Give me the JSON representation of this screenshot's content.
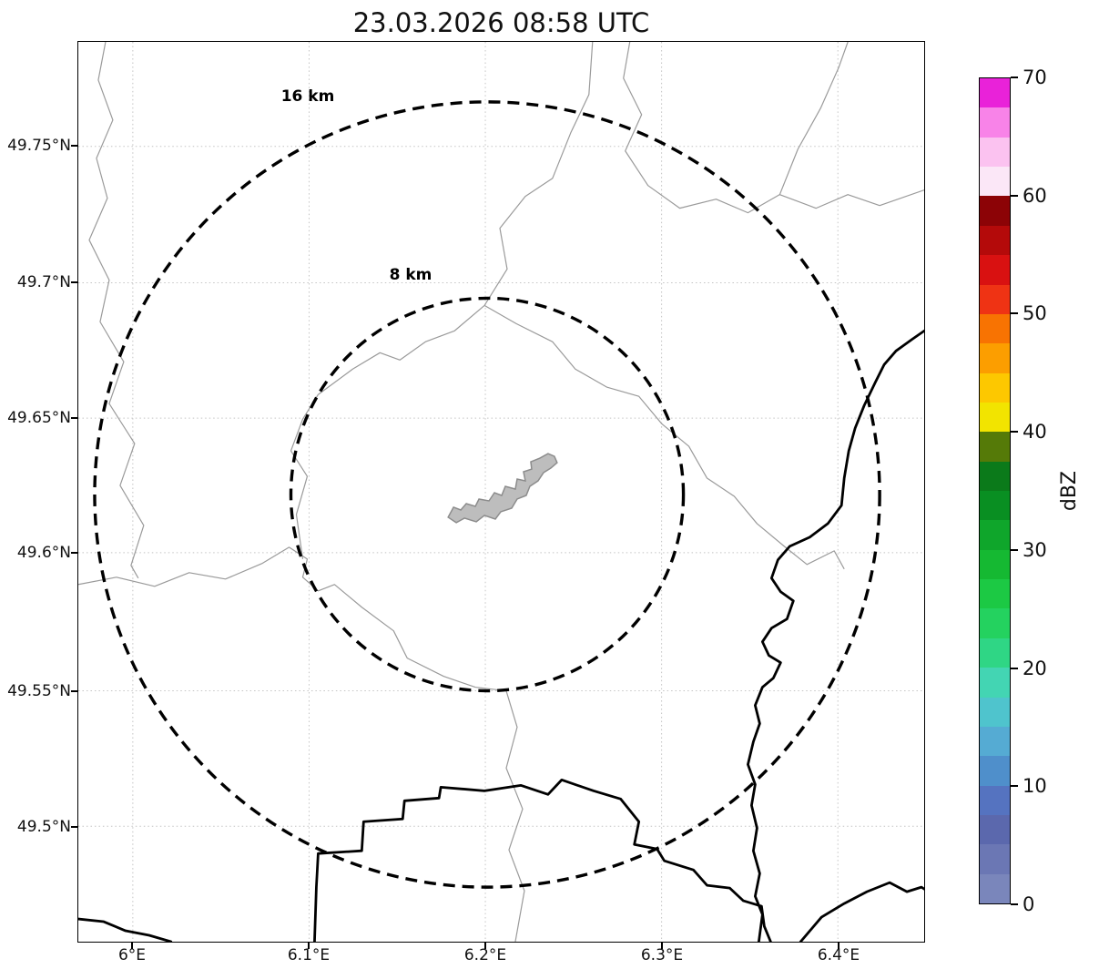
{
  "title": "23.03.2026 08:58 UTC",
  "map": {
    "x_tick_labels": [
      "6°E",
      "6.1°E",
      "6.2°E",
      "6.3°E",
      "6.4°E"
    ],
    "y_tick_labels": [
      "49.75°N",
      "49.7°N",
      "49.65°N",
      "49.6°N",
      "49.55°N",
      "49.5°N"
    ],
    "range_rings": [
      {
        "label": "8 km",
        "radius_km": 8
      },
      {
        "label": "16 km",
        "radius_km": 16
      }
    ]
  },
  "colorbar": {
    "label": "dBZ",
    "min": 0,
    "max": 70,
    "tick_labels": [
      "70",
      "60",
      "50",
      "40",
      "30",
      "20",
      "10",
      "0"
    ],
    "colors_bottom_to_top": [
      "#7a86bb",
      "#6b77b4",
      "#5b68ad",
      "#5573c0",
      "#4f8fcb",
      "#55abd3",
      "#4fc4cd",
      "#43d5b3",
      "#2fd685",
      "#24d25f",
      "#1cc944",
      "#15b932",
      "#0fa62b",
      "#098f22",
      "#0b7a1a",
      "#557a08",
      "#f2e400",
      "#fdc800",
      "#fc9e00",
      "#f87302",
      "#ef3314",
      "#d91111",
      "#b40a0a",
      "#8c0306",
      "#fbe7f7",
      "#fbc2f0",
      "#f883e8",
      "#e922d9"
    ]
  },
  "chart_data": {
    "type": "map",
    "title": "23.03.2026 08:58 UTC",
    "x_axis_range_deg_east": [
      5.97,
      6.45
    ],
    "y_axis_range_deg_north": [
      49.465,
      49.79
    ],
    "x_ticks_deg_east": [
      6.0,
      6.1,
      6.2,
      6.3,
      6.4
    ],
    "y_ticks_deg_north": [
      49.75,
      49.7,
      49.65,
      49.6,
      49.55,
      49.5
    ],
    "range_rings_km": [
      8,
      16
    ],
    "ring_center": {
      "lon_deg_east": 6.205,
      "lat_deg_north": 49.623
    },
    "grid": true,
    "colorbar": {
      "label": "dBZ",
      "range": [
        0,
        70
      ],
      "ticks": [
        0,
        10,
        20,
        30,
        40,
        50,
        60,
        70
      ]
    },
    "reflectivity_echoes_visible": false
  }
}
